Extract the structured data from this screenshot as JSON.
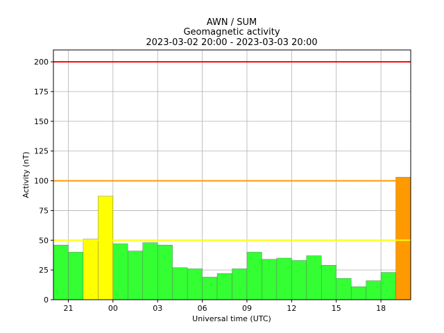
{
  "chart_data": {
    "type": "bar",
    "title_lines": [
      "AWN / SUM",
      "Geomagnetic activity",
      "2023-03-02 20:00 - 2023-03-03 20:00"
    ],
    "xlabel": "Universal time (UTC)",
    "ylabel": "Activity (nT)",
    "xlim": [
      -0.5,
      23.5
    ],
    "ylim": [
      0,
      210
    ],
    "yticks": [
      0,
      25,
      50,
      75,
      100,
      125,
      150,
      175,
      200
    ],
    "xticks": [
      {
        "pos": 0.5,
        "label": "21"
      },
      {
        "pos": 3.5,
        "label": "00"
      },
      {
        "pos": 6.5,
        "label": "03"
      },
      {
        "pos": 9.5,
        "label": "06"
      },
      {
        "pos": 12.5,
        "label": "09"
      },
      {
        "pos": 15.5,
        "label": "12"
      },
      {
        "pos": 18.5,
        "label": "15"
      },
      {
        "pos": 21.5,
        "label": "18"
      }
    ],
    "grid": true,
    "values": [
      46,
      40,
      51,
      87,
      47,
      41,
      48,
      46,
      27,
      26,
      19,
      22,
      26,
      40,
      34,
      35,
      33,
      37,
      29,
      18,
      11,
      16,
      23,
      103
    ],
    "thresholds": [
      {
        "value": 200,
        "color": "#ff0000"
      },
      {
        "value": 100,
        "color": "#ff9900"
      },
      {
        "value": 50,
        "color": "#ffff00"
      }
    ],
    "level_colors": {
      "low": "#33ff33",
      "moderate": "#ffff00",
      "high": "#ff9900",
      "severe": "#ff0000"
    }
  }
}
